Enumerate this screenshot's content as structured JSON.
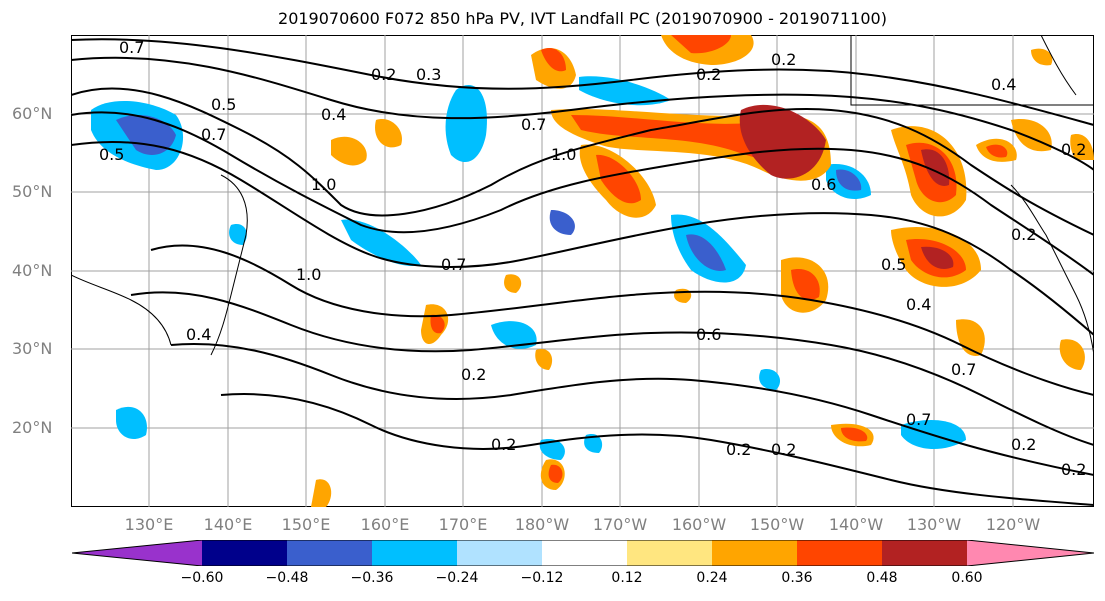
{
  "title": "2019070600 F072 850 hPa PV, IVT Landfall PC (2019070900 - 2019071100)",
  "map": {
    "latitudes": [
      "60°N",
      "50°N",
      "40°N",
      "30°N",
      "20°N"
    ],
    "longitudes": [
      "130°E",
      "140°E",
      "150°E",
      "160°E",
      "170°E",
      "180°W",
      "170°W",
      "160°W",
      "150°W",
      "140°W",
      "130°W",
      "120°W"
    ],
    "contour_labels": [
      "0.7",
      "0.2",
      "0.3",
      "0.5",
      "0.4",
      "0.7",
      "1.0",
      "1.0",
      "1.0",
      "0.6",
      "0.2",
      "0.4",
      "0.7",
      "0.2",
      "0.2",
      "0.2",
      "0.2",
      "0.7",
      "0.4",
      "0.5",
      "0.7",
      "0.6",
      "0.4",
      "0.2",
      "0.2",
      "0.2",
      "0.5",
      "0.7",
      "0.2",
      "0.2"
    ],
    "shading_colors_note": "PV anomaly filled contours"
  },
  "colorbar": {
    "ticks": [
      "−0.60",
      "−0.48",
      "−0.36",
      "−0.24",
      "−0.12",
      "0.12",
      "0.24",
      "0.36",
      "0.48",
      "0.60"
    ],
    "colors": [
      "#9932cc",
      "#00008b",
      "#3a5fcd",
      "#00bfff",
      "#b0e2ff",
      "#ffffff",
      "#ffe680",
      "#ffa500",
      "#ff4500",
      "#b22222",
      "#ff88b0"
    ]
  }
}
